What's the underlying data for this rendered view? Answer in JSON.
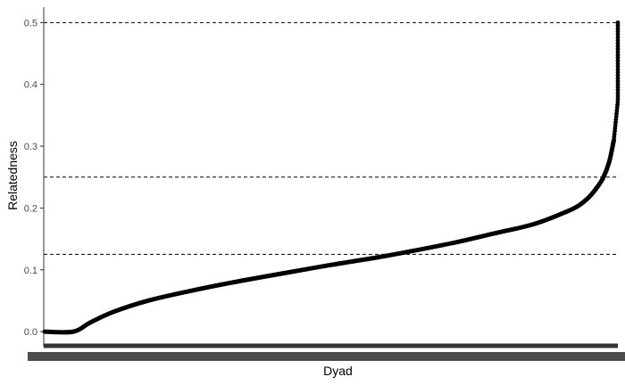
{
  "chart_data": {
    "type": "line",
    "title": "",
    "xlabel": "Dyad",
    "ylabel": "Relatedness",
    "ylim": [
      -0.02,
      0.525
    ],
    "y_ticks": [
      0.0,
      0.1,
      0.2,
      0.3,
      0.4,
      0.5
    ],
    "y_tick_labels": [
      "0.0",
      "0.1",
      "0.2",
      "0.3",
      "0.4",
      "0.5"
    ],
    "x_tick_labels_legible": false,
    "reference_lines": [
      0.5,
      0.25,
      0.125
    ],
    "reference_line_style": "dashed",
    "grid": false,
    "legend": "none",
    "series": [
      {
        "x_relative": [
          0.0,
          0.05,
          0.08,
          0.12,
          0.18,
          0.25,
          0.33,
          0.42,
          0.5,
          0.58,
          0.65,
          0.72,
          0.78,
          0.85,
          0.9,
          0.93,
          0.95,
          0.965,
          0.975,
          0.985,
          0.993,
          1.0
        ],
        "values": [
          0.0,
          0.0,
          0.015,
          0.032,
          0.05,
          0.065,
          0.08,
          0.095,
          0.108,
          0.12,
          0.132,
          0.145,
          0.158,
          0.173,
          0.19,
          0.203,
          0.218,
          0.235,
          0.25,
          0.275,
          0.31,
          0.5
        ]
      }
    ],
    "colors": {
      "line": "#000000",
      "axis": "#333333",
      "tick_label": "#4d4d4d",
      "reference_line": "#000000"
    }
  }
}
